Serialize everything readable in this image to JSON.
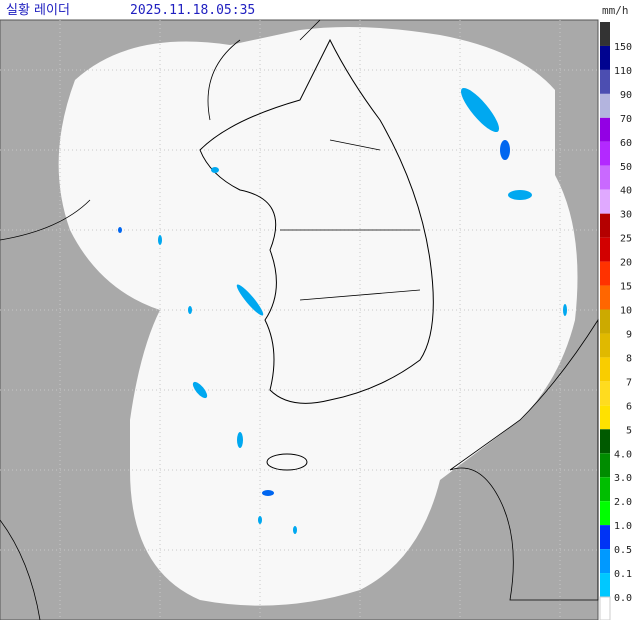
{
  "header": {
    "title": "실황 레이더",
    "time": "2025.11.18.05:35",
    "unit": "mm/h"
  },
  "legend": [
    {
      "label": "150",
      "color": "#333333"
    },
    {
      "label": "110",
      "color": "#000390"
    },
    {
      "label": "90",
      "color": "#4c4eb1"
    },
    {
      "label": "70",
      "color": "#b3b4de"
    },
    {
      "label": "60",
      "color": "#9300e4"
    },
    {
      "label": "50",
      "color": "#b329ff"
    },
    {
      "label": "40",
      "color": "#c969ff"
    },
    {
      "label": "30",
      "color": "#e0a9ff"
    },
    {
      "label": "25",
      "color": "#b40000"
    },
    {
      "label": "20",
      "color": "#d20000"
    },
    {
      "label": "15",
      "color": "#ff3200"
    },
    {
      "label": "10",
      "color": "#ff6600"
    },
    {
      "label": "9",
      "color": "#ccaa00"
    },
    {
      "label": "8",
      "color": "#e0b900"
    },
    {
      "label": "7",
      "color": "#f9cd00"
    },
    {
      "label": "6",
      "color": "#ffdc1f"
    },
    {
      "label": "5",
      "color": "#ffe100"
    },
    {
      "label": "4.0",
      "color": "#005a00"
    },
    {
      "label": "3.0",
      "color": "#008c00"
    },
    {
      "label": "2.0",
      "color": "#00be00"
    },
    {
      "label": "1.0",
      "color": "#00ff00"
    },
    {
      "label": "0.5",
      "color": "#0033f5"
    },
    {
      "label": "0.1",
      "color": "#0099ff"
    },
    {
      "label": "0.0",
      "color": "#00c8ff"
    }
  ]
}
